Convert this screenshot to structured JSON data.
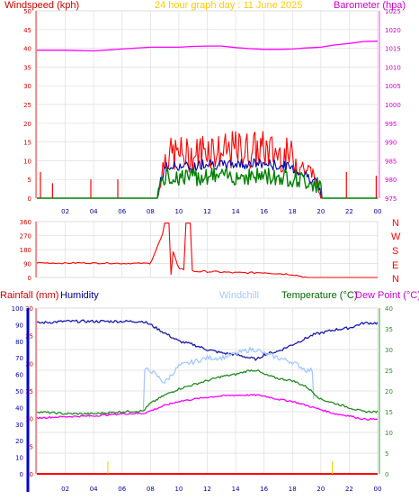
{
  "title": "24 hour graph day : 11 June 2025",
  "colors": {
    "wind": "#ff0000",
    "gust_dark": "#0000aa",
    "gust_green": "#008000",
    "baro": "#ff00ff",
    "winddir": "#ff0000",
    "humidity": "#1a1aaa",
    "windchill": "#a6c8ff",
    "temperature": "#228b22",
    "dewpoint": "#ff00ff",
    "rainfall": "#ff0000",
    "left_axis_blue": "#0000cc",
    "title": "#ffcc00",
    "grid": "#dddddd"
  },
  "x_tick_labels": [
    "02",
    "04",
    "06",
    "08",
    "10",
    "12",
    "14",
    "16",
    "18",
    "20",
    "22",
    "00"
  ],
  "panel1": {
    "left_label": "Windspeed (kph)",
    "right_label": "Barometer (hpa)",
    "left_ticks": [
      "0",
      "5",
      "10",
      "15",
      "20",
      "25",
      "30",
      "35",
      "40",
      "45",
      "50"
    ],
    "right_ticks": [
      "975",
      "980",
      "985",
      "990",
      "995",
      "1000",
      "1005",
      "1010",
      "1015",
      "1020",
      "1025"
    ]
  },
  "panel2": {
    "ticks": [
      "0",
      "90",
      "180",
      "270",
      "360"
    ],
    "directions": [
      "N",
      "W",
      "S",
      "E",
      "N"
    ]
  },
  "panel3": {
    "rain_label": "Rainfall (mm)",
    "humidity_label": "Humidity",
    "windchill_label": "Windchill",
    "temperature_label": "Temperature (°C)",
    "dewpoint_label": "Dew Point (°C)",
    "hum_ticks": [
      "0",
      "10",
      "20",
      "30",
      "40",
      "50",
      "60",
      "70",
      "80",
      "90",
      "100"
    ],
    "rain_ticks": [
      "0",
      "5",
      "10",
      "15",
      "20",
      "25",
      "30"
    ],
    "temp_ticks": [
      "0",
      "5",
      "10",
      "15",
      "20",
      "25",
      "30",
      "35",
      "40"
    ]
  },
  "chart_data": [
    {
      "type": "line",
      "xlabel": "",
      "x": [
        0,
        2,
        4,
        6,
        8,
        8.5,
        9,
        10,
        11,
        12,
        13,
        14,
        15,
        16,
        17,
        18,
        19,
        19.5,
        20,
        21,
        22,
        23,
        24
      ],
      "series": [
        {
          "name": "Barometer (hpa)",
          "axis": "right",
          "ylim": [
            975,
            1025
          ],
          "values": [
            1014.5,
            1014.5,
            1014.3,
            1014.8,
            1015.3,
            1015.3,
            1015.3,
            1015.3,
            1015.5,
            1015.6,
            1015.6,
            1015.2,
            1014.9,
            1014.7,
            1014.7,
            1014.8,
            1015.1,
            1015.2,
            1015.3,
            1015.9,
            1016.3,
            1016.8,
            1016.9
          ]
        },
        {
          "name": "Windspeed (kph)",
          "axis": "left",
          "ylim": [
            0,
            50
          ],
          "values": [
            0,
            0,
            0,
            0,
            0,
            0,
            12,
            13,
            12,
            15,
            13,
            14,
            14,
            14,
            13,
            12,
            8,
            7,
            0,
            0,
            0,
            0,
            0
          ]
        }
      ]
    },
    {
      "type": "line",
      "ylim": [
        0,
        360
      ],
      "x": [
        0,
        1,
        2,
        3,
        4,
        5,
        6,
        7,
        8,
        9,
        10,
        11,
        12,
        13,
        14,
        15,
        16,
        17,
        18,
        19,
        20,
        21,
        22,
        23,
        24
      ],
      "values": [
        95,
        93,
        92,
        94,
        92,
        93,
        90,
        91,
        91,
        310,
        60,
        40,
        38,
        35,
        30,
        30,
        32,
        25,
        20,
        0,
        0,
        0,
        0,
        0,
        0
      ]
    },
    {
      "type": "line",
      "x": [
        0,
        2,
        4,
        6,
        7.5,
        8,
        9,
        10,
        11,
        12,
        13,
        14,
        15,
        15.5,
        16,
        17,
        18,
        19,
        19.5,
        20,
        21,
        22,
        23,
        24
      ],
      "series": [
        {
          "name": "Humidity",
          "ylim": [
            0,
            100
          ],
          "values": [
            91,
            92,
            92,
            92,
            92,
            90,
            85,
            80,
            78,
            75,
            73,
            72,
            70,
            69,
            72,
            74,
            78,
            82,
            84,
            85,
            87,
            88,
            91,
            91
          ]
        },
        {
          "name": "Windchill",
          "ylim": [
            0,
            40
          ],
          "values": [
            null,
            null,
            null,
            null,
            null,
            null,
            22,
            26,
            27,
            28,
            28,
            29,
            30,
            30,
            29,
            28,
            27,
            25,
            25,
            null,
            null,
            null,
            null,
            null
          ]
        },
        {
          "name": "Temperature (°C)",
          "ylim": [
            0,
            40
          ],
          "values": [
            15,
            14.5,
            14.5,
            15,
            15.2,
            17,
            19,
            20.5,
            21.5,
            22.5,
            23.5,
            24,
            25,
            25,
            24,
            23,
            22.5,
            21,
            19.5,
            18,
            17,
            16,
            15,
            15
          ]
        },
        {
          "name": "Dew Point (°C)",
          "ylim": [
            0,
            40
          ],
          "values": [
            13.5,
            13.8,
            14,
            14.5,
            14.6,
            15.2,
            16.5,
            17.5,
            18,
            18.5,
            18.8,
            19,
            19,
            19,
            18.8,
            18,
            17.5,
            16.5,
            16,
            15.5,
            14.5,
            14,
            13.2,
            13.2
          ]
        },
        {
          "name": "Rainfall (mm)",
          "ylim": [
            0,
            30
          ],
          "values": [
            0,
            0,
            0,
            0,
            0,
            0,
            0,
            0,
            0,
            0,
            0,
            0,
            0,
            0,
            0,
            0,
            0,
            0,
            0,
            0,
            0,
            0,
            0,
            0
          ]
        }
      ]
    }
  ]
}
